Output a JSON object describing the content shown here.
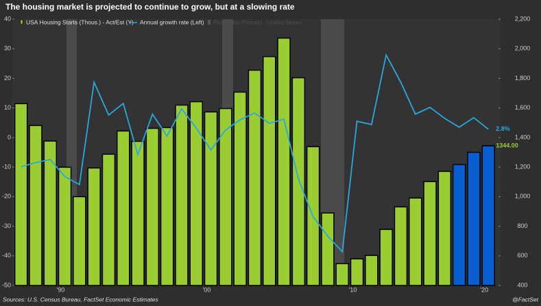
{
  "chart_data": {
    "type": "bar_line",
    "title": "The housing market is projected to continue to grow, but at a slowing rate",
    "source": "Sources: U.S. Census Bureau, FactSet Economic Estimates",
    "credit": "@FactSet",
    "categories": [
      null,
      null,
      null,
      "'90",
      null,
      null,
      null,
      null,
      null,
      null,
      null,
      null,
      null,
      "'00",
      null,
      null,
      null,
      null,
      null,
      null,
      null,
      null,
      null,
      "'10",
      null,
      null,
      null,
      null,
      null,
      null,
      null,
      null,
      "'20"
    ],
    "series": [
      {
        "name": "USA Housing Starts (Thous.) - Act/Est (Y)",
        "type": "bar",
        "axis": "y2",
        "colors": [
          "#9acd32",
          "#9acd32",
          "#9acd32",
          "#9acd32",
          "#9acd32",
          "#9acd32",
          "#9acd32",
          "#9acd32",
          "#9acd32",
          "#9acd32",
          "#9acd32",
          "#9acd32",
          "#9acd32",
          "#9acd32",
          "#9acd32",
          "#9acd32",
          "#9acd32",
          "#9acd32",
          "#9acd32",
          "#9acd32",
          "#9acd32",
          "#9acd32",
          "#9acd32",
          "#9acd32",
          "#9acd32",
          "#9acd32",
          "#9acd32",
          "#9acd32",
          "#9acd32",
          "#9acd32",
          "#0a5fd0",
          "#0a5fd0",
          "#0a5fd0"
        ],
        "color": "#9acd32",
        "values": [
          1629,
          1481,
          1376,
          1199,
          1000,
          1194,
          1287,
          1444,
          1374,
          1462,
          1467,
          1619,
          1642,
          1573,
          1596,
          1707,
          1855,
          1947,
          2072,
          1804,
          1338,
          890,
          548,
          580,
          603,
          779,
          931,
          991,
          1102,
          1171,
          1217,
          1300,
          1344
        ],
        "value_labels": [
          null,
          null,
          null,
          null,
          null,
          null,
          null,
          null,
          null,
          null,
          null,
          null,
          null,
          null,
          null,
          null,
          null,
          null,
          null,
          null,
          null,
          null,
          null,
          null,
          null,
          null,
          null,
          null,
          null,
          null,
          null,
          null,
          "1344.00"
        ]
      },
      {
        "name": "Annual growth rate (Left)",
        "type": "line",
        "axis": "y",
        "color": "#29a8e0",
        "values": [
          -9.9,
          -8.5,
          -7.4,
          -13.2,
          -15.9,
          18.7,
          7.6,
          11.5,
          -5.8,
          7.9,
          0.5,
          9.7,
          3.2,
          -4.2,
          2.5,
          6.0,
          8.3,
          4.8,
          6.2,
          -14.1,
          -26.8,
          -33.3,
          -38.6,
          5.5,
          4.4,
          27.9,
          18.7,
          7.9,
          10.2,
          6.5,
          3.5,
          6.7,
          2.8
        ],
        "value_labels": [
          null,
          null,
          null,
          null,
          null,
          null,
          null,
          null,
          null,
          null,
          null,
          null,
          null,
          null,
          null,
          null,
          null,
          null,
          null,
          null,
          null,
          null,
          null,
          null,
          null,
          null,
          null,
          null,
          null,
          null,
          null,
          null,
          "2.8%"
        ]
      }
    ],
    "recession_legend": "Recession Periods - United States",
    "ylim": [
      -50,
      40
    ],
    "yticks": [
      40,
      30,
      20,
      10,
      0,
      -10,
      -20,
      -30,
      -40,
      -50
    ],
    "y2lim": [
      400,
      2200
    ],
    "y2ticks": [
      {
        "value": 2200,
        "label": "2,200"
      },
      {
        "value": 2000,
        "label": "2,000"
      },
      {
        "value": 1800,
        "label": "1,800"
      },
      {
        "value": 1600,
        "label": "1,600"
      },
      {
        "value": 1400,
        "label": "1,400"
      },
      {
        "value": 1200,
        "label": "1,200"
      },
      {
        "value": 1000,
        "label": "1,000"
      },
      800,
      600,
      400
    ]
  }
}
